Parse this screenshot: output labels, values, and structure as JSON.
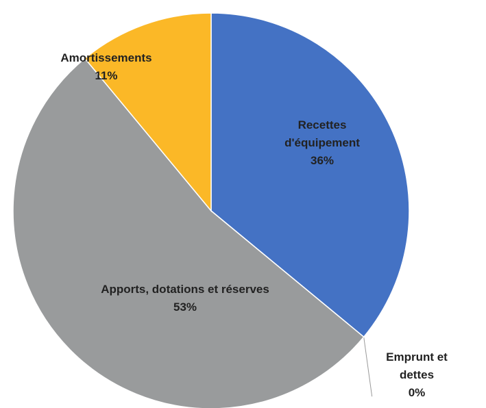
{
  "chart_data": {
    "type": "pie",
    "categories": [
      "Recettes d'équipement",
      "Emprunt et dettes",
      "Apports, dotations et réserves",
      "Amortissements"
    ],
    "values": [
      36,
      0,
      53,
      11
    ],
    "value_labels": [
      "36%",
      "0%",
      "53%",
      "11%"
    ],
    "colors": [
      "#4472c4",
      "#ed7d31",
      "#999b9c",
      "#fbb827"
    ]
  }
}
